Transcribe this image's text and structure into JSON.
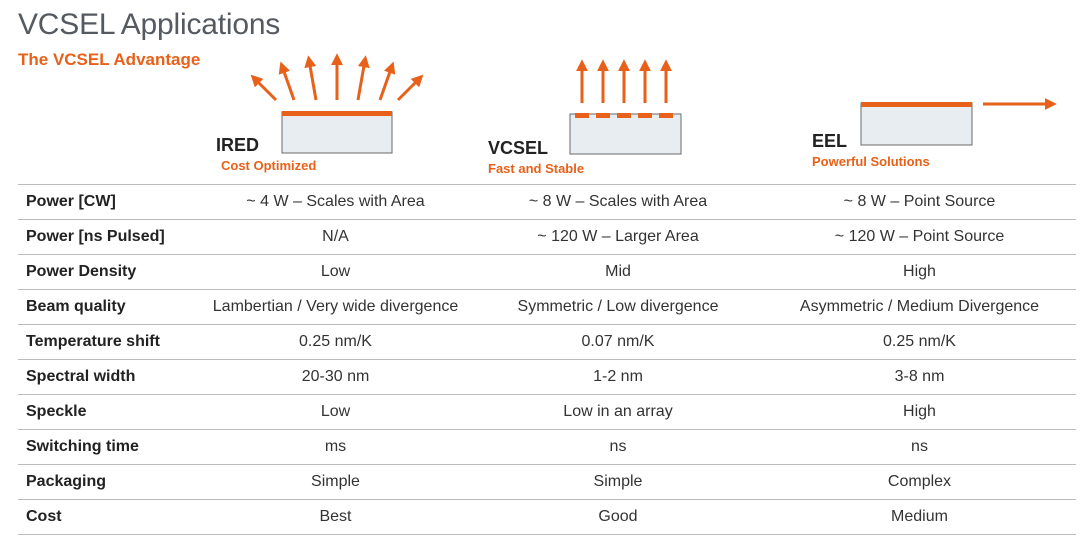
{
  "title": "VCSEL Applications",
  "subtitle": "The VCSEL Advantage",
  "colors": {
    "accent": "#e8611a",
    "chip_fill": "#e8edf2",
    "chip_border": "#6a6a6a",
    "text": "#333333"
  },
  "devices": [
    {
      "name": "IRED",
      "tagline": "Cost Optimized",
      "emission": "lambertian"
    },
    {
      "name": "VCSEL",
      "tagline": "Fast and Stable",
      "emission": "vertical"
    },
    {
      "name": "EEL",
      "tagline": "Powerful Solutions",
      "emission": "edge"
    }
  ],
  "rows": [
    {
      "label": "Power [CW]",
      "values": [
        "~ 4 W – Scales with Area",
        "~ 8 W – Scales with Area",
        "~ 8 W – Point Source"
      ]
    },
    {
      "label": "Power [ns Pulsed]",
      "values": [
        "N/A",
        "~ 120 W – Larger Area",
        "~ 120 W – Point Source"
      ]
    },
    {
      "label": "Power Density",
      "values": [
        "Low",
        "Mid",
        "High"
      ]
    },
    {
      "label": "Beam quality",
      "values": [
        "Lambertian / Very wide divergence",
        "Symmetric / Low divergence",
        "Asymmetric / Medium Divergence"
      ]
    },
    {
      "label": "Temperature shift",
      "values": [
        "0.25 nm/K",
        "0.07 nm/K",
        "0.25 nm/K"
      ]
    },
    {
      "label": "Spectral width",
      "values": [
        "20-30 nm",
        "1-2 nm",
        "3-8 nm"
      ]
    },
    {
      "label": "Speckle",
      "values": [
        "Low",
        "Low in an array",
        "High"
      ]
    },
    {
      "label": "Switching time",
      "values": [
        "ms",
        "ns",
        "ns"
      ]
    },
    {
      "label": "Packaging",
      "values": [
        "Simple",
        "Simple",
        "Complex"
      ]
    },
    {
      "label": "Cost",
      "values": [
        "Best",
        "Good",
        "Medium"
      ]
    }
  ]
}
